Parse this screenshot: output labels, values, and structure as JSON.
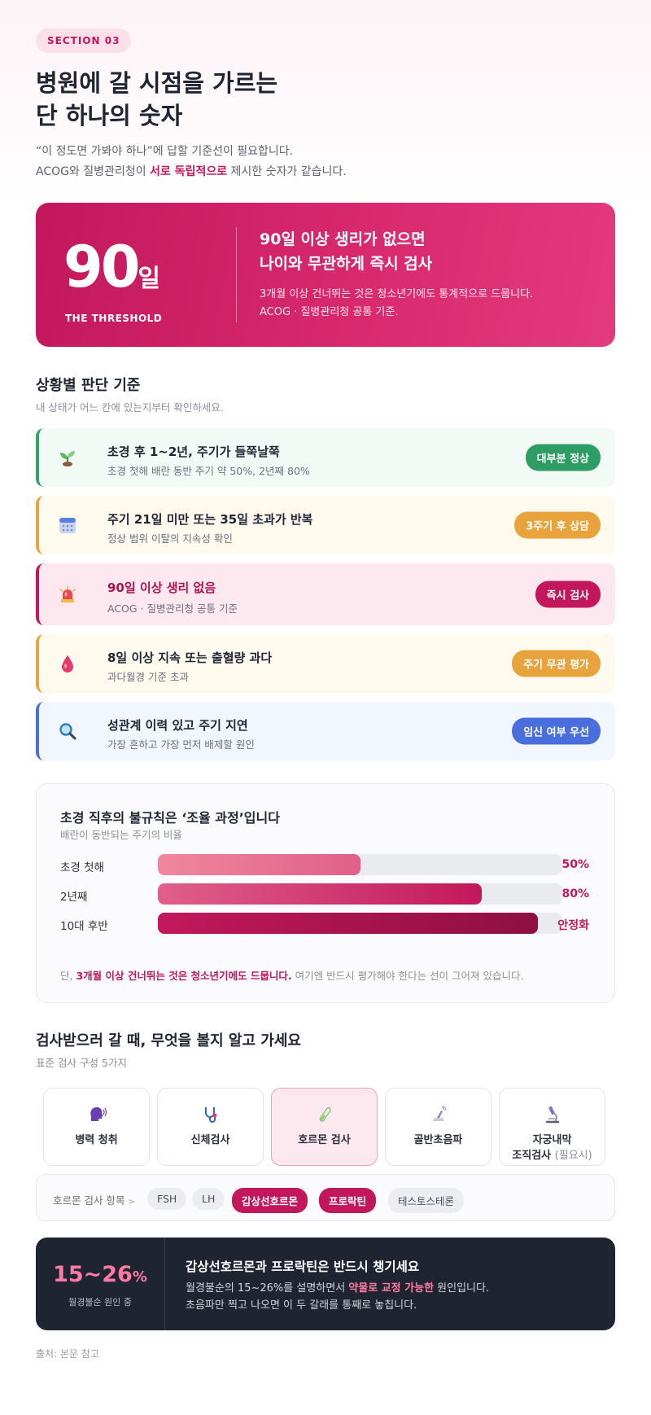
{
  "section_label": "SECTION 03",
  "headline": [
    "병원에 갈 시점을 가르는",
    "단 하나의 숫자"
  ],
  "subtitle": {
    "line1": "“이 정도면 가봐야 하나”에 답할 기준선이 필요합니다.",
    "line2_pre": "ACOG와 질병관리청이 ",
    "line2_em": "서로 독립적으로",
    "line2_post": " 제시한 숫자가 같습니다."
  },
  "hero": {
    "number": "90",
    "unit": "일",
    "caption": "THE THRESHOLD",
    "title_line1": "90일 이상 생리가 없으면",
    "title_line2": "나이와 무관하게 즉시 검사",
    "desc_line1": "3개월 이상 건너뛰는 것은 청소년기에도 통계적으로 드뭅니다.",
    "desc_line2": "ACOG · 질병관리청 공통 기준."
  },
  "criteria": {
    "title": "상황별 판단 기준",
    "subtitle": "내 상태가 어느 칸에 있는지부터 확인하세요.",
    "rows": [
      {
        "icon": "seedling-icon",
        "title": "초경 후 1~2년, 주기가 들쭉날쭉",
        "desc": "초경 첫해 배란 동반 주기 약 50%, 2년째 80%",
        "badge": "대부분 정상",
        "color": "#2e9d64"
      },
      {
        "icon": "calendar-icon",
        "title": "주기 21일 미만 또는 35일 초과가 반복",
        "desc": "정상 범위 이탈의 지속성 확인",
        "badge": "3주기 후 상담",
        "color": "#e8a33c"
      },
      {
        "icon": "alarm-siren-icon",
        "title": "90일 이상 생리 없음",
        "desc": "ACOG · 질병관리청 공통 기준",
        "badge": "즉시 검사",
        "color": "#c2185b"
      },
      {
        "icon": "blood-drop-icon",
        "title": "8일 이상 지속 또는 출혈량 과다",
        "desc": "과다월경 기준 초과",
        "badge": "주기 무관 평가",
        "color": "#e8a33c"
      },
      {
        "icon": "magnifier-icon",
        "title": "성관계 이력 있고 주기 지연",
        "desc": "가장 흔하고 가장 먼저 배제할 원인",
        "badge": "임신 여부 우선",
        "color": "#4a6fdc"
      }
    ]
  },
  "ovulation": {
    "title": "초경 직후의 불규칙은 ‘조율 과정’입니다",
    "subtitle": "배란이 동반되는 주기의 비율",
    "bars": [
      {
        "label": "초경 첫해",
        "value": 50,
        "display": "50%"
      },
      {
        "label": "2년째",
        "value": 80,
        "display": "80%"
      },
      {
        "label": "10대 후반",
        "value": 94,
        "display": "안정화"
      }
    ],
    "note_pre": "단, ",
    "note_em": "3개월 이상 건너뛰는 것은 청소년기에도 드뭅니다.",
    "note_post": " 여기엔 반드시 평가해야 한다는 선이 그어져 있습니다."
  },
  "tests": {
    "title": "검사받으러 갈 때, 무엇을 볼지 알고 가세요",
    "subtitle": "표준 검사 구성 5가지",
    "items": [
      {
        "icon": "speaking-head-icon",
        "label": "병력 청취"
      },
      {
        "icon": "stethoscope-icon",
        "label": "신체검사"
      },
      {
        "icon": "test-tube-icon",
        "label": "호르몬 검사"
      },
      {
        "icon": "ultrasound-icon",
        "label": "골반초음파"
      },
      {
        "icon": "microscope-icon",
        "label": "자궁내막",
        "label2": "조직검사",
        "optional": "(필요시)"
      }
    ],
    "hormone_label": "호르몬 검사 항목",
    "hormone_chips": [
      "FSH",
      "LH",
      "갑상선호르몬",
      "프로락틴",
      "테스토스테론"
    ]
  },
  "callout": {
    "percent": "15~26",
    "percent_unit": "%",
    "percent_caption": "월경불순 원인 중",
    "title": "갑상선호르몬과 프로락틴은 반드시 챙기세요",
    "line1_pre": "월경불순의 15~26%를 설명하면서 ",
    "line1_em": "약물로 교정 가능한",
    "line1_post": " 원인입니다.",
    "line2": "초음파만 찍고 나오면 이 두 갈래를 통째로 놓칩니다."
  },
  "source": "출처: 본문 참고"
}
